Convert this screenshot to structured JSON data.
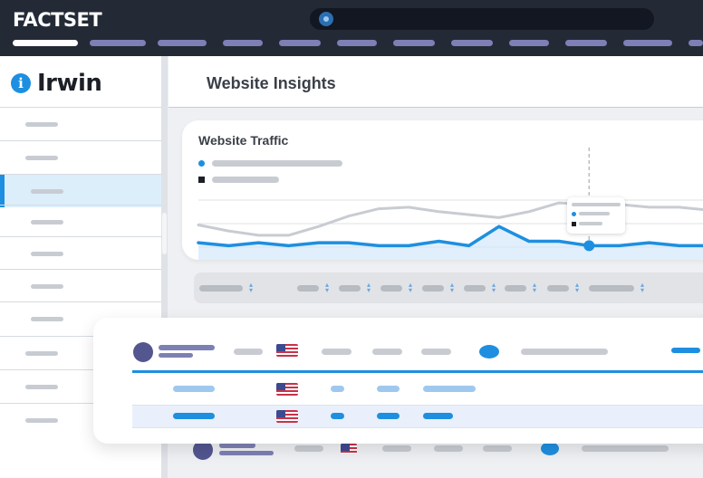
{
  "topbar": {
    "logo_text": "FACTSET",
    "search_icon": "search-icon",
    "nav_tab_count": 12
  },
  "sidebar": {
    "brand_icon_glyph": "i",
    "brand_name": "Irwin"
  },
  "main": {
    "page_title": "Website Insights"
  },
  "chart_data": {
    "type": "line",
    "title": "Website Traffic",
    "xlabel": "",
    "ylabel": "",
    "grid": true,
    "x": [
      0,
      1,
      2,
      3,
      4,
      5,
      6,
      7,
      8,
      9,
      10,
      11,
      12,
      13,
      14,
      15,
      16,
      17
    ],
    "series": [
      {
        "color": "#1e8fe0",
        "values": [
          3,
          1,
          3,
          1,
          3,
          3,
          1,
          1,
          4,
          1,
          14,
          4,
          4,
          1,
          1,
          3,
          1,
          1
        ]
      },
      {
        "color": "#c8ccd2",
        "values": [
          15,
          11,
          8,
          8,
          14,
          21,
          26,
          27,
          24,
          22,
          20,
          24,
          30,
          29,
          29,
          27,
          27,
          25
        ]
      }
    ],
    "highlight_index": 13,
    "ylim": [
      0,
      38
    ]
  },
  "colors": {
    "topbar_bg": "#232a36",
    "accent_blue": "#1e8fe0",
    "nav_pill": "#7d7fb5",
    "avatar": "#53568f",
    "selected_row": "#dceefa"
  }
}
